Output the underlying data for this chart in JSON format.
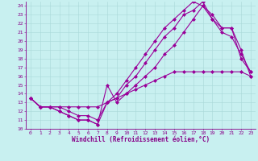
{
  "xlabel": "Windchill (Refroidissement éolien,°C)",
  "background_color": "#c8f0f0",
  "grid_color": "#a8d8d8",
  "line_color": "#990099",
  "xlim": [
    -0.5,
    23.5
  ],
  "ylim": [
    10,
    24.5
  ],
  "xticks": [
    0,
    1,
    2,
    3,
    4,
    5,
    6,
    7,
    8,
    9,
    10,
    11,
    12,
    13,
    14,
    15,
    16,
    17,
    18,
    19,
    20,
    21,
    22,
    23
  ],
  "yticks": [
    10,
    11,
    12,
    13,
    14,
    15,
    16,
    17,
    18,
    19,
    20,
    21,
    22,
    23,
    24
  ],
  "line1_x": [
    0,
    1,
    2,
    3,
    4,
    5,
    6,
    7,
    8,
    9,
    10,
    11,
    12,
    13,
    14,
    15,
    16,
    17,
    18,
    19,
    20,
    21,
    22,
    23
  ],
  "line1_y": [
    13.5,
    12.5,
    12.5,
    12.0,
    11.5,
    11.0,
    11.0,
    10.5,
    15.0,
    13.0,
    14.0,
    15.0,
    16.0,
    17.0,
    18.5,
    19.5,
    21.0,
    22.5,
    24.0,
    23.0,
    21.5,
    21.5,
    18.0,
    16.5
  ],
  "line2_x": [
    0,
    1,
    2,
    3,
    4,
    5,
    6,
    7,
    8,
    9,
    10,
    11,
    12,
    13,
    14,
    15,
    16,
    17,
    18,
    19,
    20,
    21,
    22,
    23
  ],
  "line2_y": [
    13.5,
    12.5,
    12.5,
    12.0,
    11.5,
    11.0,
    11.0,
    10.5,
    13.0,
    13.5,
    15.0,
    16.0,
    17.5,
    19.0,
    20.5,
    21.5,
    23.0,
    23.5,
    24.5,
    22.5,
    21.0,
    20.5,
    18.5,
    16.5
  ],
  "line3_x": [
    0,
    1,
    2,
    3,
    4,
    5,
    6,
    7,
    8,
    9,
    10,
    11,
    12,
    13,
    14,
    15,
    16,
    17,
    18,
    19,
    20,
    21,
    22,
    23
  ],
  "line3_y": [
    13.5,
    12.5,
    12.5,
    12.5,
    12.0,
    11.5,
    11.5,
    11.0,
    13.0,
    14.0,
    15.5,
    17.0,
    18.5,
    20.0,
    21.5,
    22.5,
    23.5,
    24.5,
    24.0,
    22.5,
    21.5,
    21.5,
    19.0,
    16.0
  ],
  "line4_x": [
    0,
    1,
    2,
    3,
    4,
    5,
    6,
    7,
    8,
    9,
    10,
    11,
    12,
    13,
    14,
    15,
    16,
    17,
    18,
    19,
    20,
    21,
    22,
    23
  ],
  "line4_y": [
    13.5,
    12.5,
    12.5,
    12.5,
    12.5,
    12.5,
    12.5,
    12.5,
    13.0,
    13.5,
    14.0,
    14.5,
    15.0,
    15.5,
    16.0,
    16.5,
    16.5,
    16.5,
    16.5,
    16.5,
    16.5,
    16.5,
    16.5,
    16.0
  ],
  "marker": "D",
  "markersize": 2,
  "linewidth": 0.8,
  "tick_fontsize": 4.5,
  "xlabel_fontsize": 5.5,
  "axis_color": "#880088",
  "spine_color": "#880088"
}
